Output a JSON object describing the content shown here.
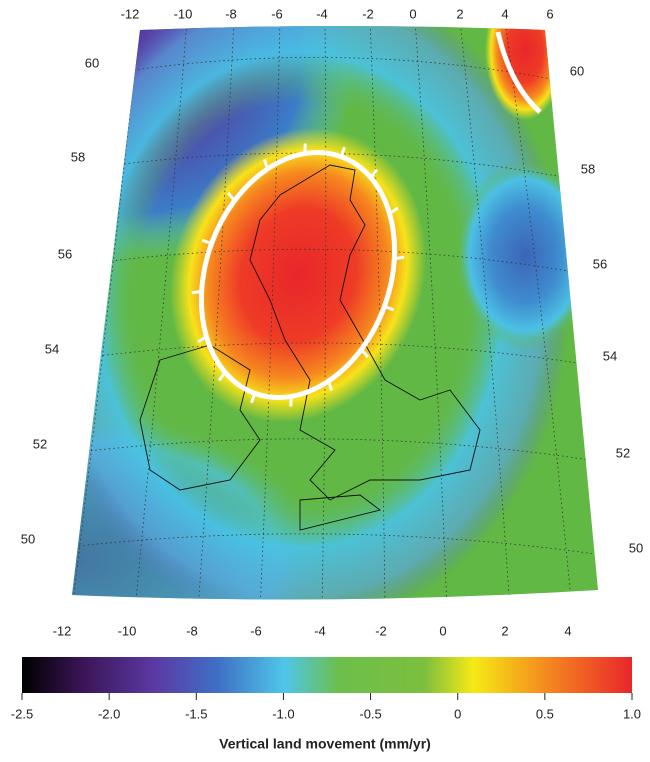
{
  "map": {
    "top_longitude_labels": [
      -12,
      -10,
      -8,
      -6,
      -4,
      -2,
      0,
      2,
      4,
      6
    ],
    "bottom_longitude_labels": [
      -12,
      -10,
      -8,
      -6,
      -4,
      -2,
      0,
      2,
      4
    ],
    "left_latitude_labels": [
      60,
      58,
      56,
      54,
      52,
      50
    ],
    "right_latitude_labels": [
      60,
      58,
      56,
      54,
      52,
      50
    ]
  },
  "colorbar": {
    "label": "Vertical land movement (mm/yr)",
    "range": [
      -2.5,
      1.0
    ],
    "ticks": [
      -2.5,
      {
        "value": -2.0,
        "label": "-2.0"
      },
      -1.5,
      {
        "value": -1.0,
        "label": "-1.0"
      },
      -0.5,
      0,
      0.5,
      {
        "value": 1.0,
        "label": "1.0"
      }
    ]
  }
}
